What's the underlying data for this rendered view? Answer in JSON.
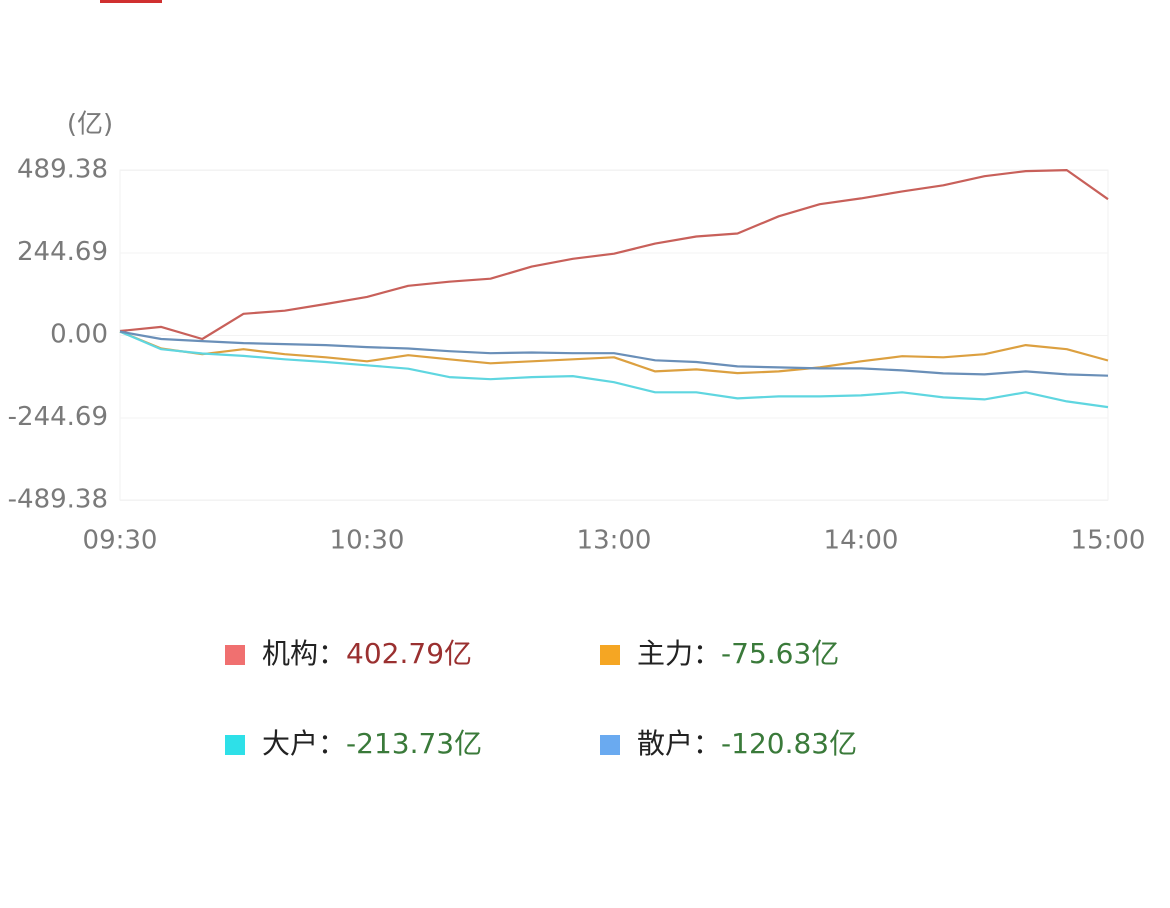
{
  "chart_data": {
    "type": "line",
    "y_unit": "(亿)",
    "categories": [
      "09:30",
      null,
      null,
      null,
      null,
      null,
      "10:30",
      null,
      null,
      null,
      null,
      null,
      "13:00",
      null,
      null,
      null,
      null,
      null,
      "14:00",
      null,
      null,
      null,
      null,
      null,
      "15:00"
    ],
    "ylim": [
      -489.38,
      489.38
    ],
    "yticks": [
      489.38,
      244.69,
      {
        "value": 0,
        "label": "0.00"
      },
      -244.69,
      -489.38
    ],
    "legend_separator": "：",
    "series": [
      {
        "name": "机构",
        "color": "#c8605a",
        "swatch": "#f07070",
        "value": 402.79,
        "value_label": "402.79亿",
        "value_color": "#9a3030",
        "values": [
          12,
          24,
          -12,
          63,
          72,
          92,
          113,
          146,
          158,
          167,
          203,
          226,
          241,
          271,
          292,
          301,
          352,
          388,
          405,
          426,
          444,
          471,
          486,
          489,
          402.79
        ]
      },
      {
        "name": "主力",
        "color": "#dca040",
        "swatch": "#f5a623",
        "value": -75.63,
        "value_label": "-75.63亿",
        "value_color": "#3a7a3a",
        "values": [
          10,
          -40,
          -57,
          -42,
          -57,
          -66,
          -78,
          -60,
          -72,
          -84,
          -78,
          -72,
          -66,
          -108,
          -102,
          -113,
          -108,
          -96,
          -78,
          -63,
          -66,
          -57,
          -30,
          -42,
          -75.63
        ]
      },
      {
        "name": "大户",
        "color": "#5fd6e0",
        "swatch": "#2ee0e8",
        "value": -213.73,
        "value_label": "-213.73亿",
        "value_color": "#3a7a3a",
        "values": [
          10,
          -42,
          -55,
          -62,
          -72,
          -80,
          -90,
          -100,
          -125,
          -131,
          -125,
          -122,
          -140,
          -170,
          -170,
          -188,
          -182,
          -182,
          -179,
          -170,
          -185,
          -191,
          -170,
          -197,
          -213.73
        ]
      },
      {
        "name": "散户",
        "color": "#6a8fb8",
        "swatch": "#6aaaf0",
        "value": -120.83,
        "value_label": "-120.83亿",
        "value_color": "#3a7a3a",
        "values": [
          10,
          -12,
          -18,
          -24,
          -27,
          -30,
          -36,
          -40,
          -48,
          -54,
          -52,
          -54,
          -54,
          -75,
          -80,
          -93,
          -96,
          -99,
          -99,
          -105,
          -114,
          -117,
          -108,
          -117,
          -120.83
        ]
      }
    ]
  }
}
